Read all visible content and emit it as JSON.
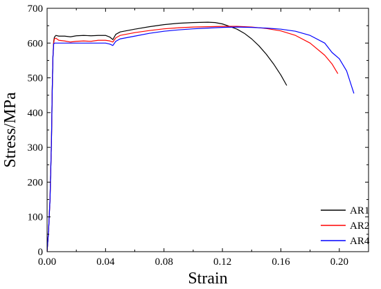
{
  "chart_data": {
    "type": "line",
    "xlabel": "Strain",
    "ylabel": "Stress/MPa",
    "xlim": [
      0.0,
      0.22
    ],
    "ylim": [
      0,
      700
    ],
    "x_ticks": [
      0.0,
      0.04,
      0.08,
      0.12,
      0.16,
      0.2
    ],
    "x_tick_labels": [
      "0.00",
      "0.04",
      "0.08",
      "0.12",
      "0.16",
      "0.20"
    ],
    "y_ticks": [
      0,
      100,
      200,
      300,
      400,
      500,
      600,
      700
    ],
    "y_tick_labels": [
      "0",
      "100",
      "200",
      "300",
      "400",
      "500",
      "600",
      "700"
    ],
    "grid": false,
    "legend_position": "bottom-right",
    "series": [
      {
        "name": "AR1",
        "color": "#000000",
        "points": [
          [
            0.0,
            0
          ],
          [
            0.001,
            60
          ],
          [
            0.002,
            150
          ],
          [
            0.003,
            320
          ],
          [
            0.0035,
            460
          ],
          [
            0.004,
            560
          ],
          [
            0.0045,
            605
          ],
          [
            0.005,
            617
          ],
          [
            0.006,
            622
          ],
          [
            0.008,
            620
          ],
          [
            0.012,
            620
          ],
          [
            0.016,
            618
          ],
          [
            0.02,
            621
          ],
          [
            0.025,
            622
          ],
          [
            0.03,
            621
          ],
          [
            0.035,
            622
          ],
          [
            0.04,
            622
          ],
          [
            0.043,
            617
          ],
          [
            0.045,
            610
          ],
          [
            0.047,
            625
          ],
          [
            0.05,
            632
          ],
          [
            0.06,
            640
          ],
          [
            0.07,
            647
          ],
          [
            0.08,
            653
          ],
          [
            0.09,
            657
          ],
          [
            0.1,
            659
          ],
          [
            0.11,
            660
          ],
          [
            0.115,
            659
          ],
          [
            0.12,
            655
          ],
          [
            0.125,
            648
          ],
          [
            0.13,
            640
          ],
          [
            0.135,
            628
          ],
          [
            0.14,
            612
          ],
          [
            0.145,
            592
          ],
          [
            0.15,
            568
          ],
          [
            0.155,
            540
          ],
          [
            0.16,
            508
          ],
          [
            0.164,
            478
          ]
        ]
      },
      {
        "name": "AR2",
        "color": "#ff0000",
        "points": [
          [
            0.0,
            0
          ],
          [
            0.001,
            60
          ],
          [
            0.002,
            150
          ],
          [
            0.003,
            320
          ],
          [
            0.0035,
            460
          ],
          [
            0.004,
            560
          ],
          [
            0.0045,
            600
          ],
          [
            0.005,
            612
          ],
          [
            0.006,
            614
          ],
          [
            0.008,
            608
          ],
          [
            0.012,
            606
          ],
          [
            0.016,
            603
          ],
          [
            0.02,
            605
          ],
          [
            0.025,
            606
          ],
          [
            0.03,
            605
          ],
          [
            0.035,
            608
          ],
          [
            0.04,
            608
          ],
          [
            0.043,
            606
          ],
          [
            0.045,
            603
          ],
          [
            0.047,
            615
          ],
          [
            0.05,
            622
          ],
          [
            0.06,
            630
          ],
          [
            0.07,
            636
          ],
          [
            0.08,
            641
          ],
          [
            0.09,
            644
          ],
          [
            0.1,
            646
          ],
          [
            0.11,
            647
          ],
          [
            0.12,
            648
          ],
          [
            0.13,
            648
          ],
          [
            0.14,
            646
          ],
          [
            0.15,
            642
          ],
          [
            0.16,
            635
          ],
          [
            0.17,
            622
          ],
          [
            0.18,
            600
          ],
          [
            0.19,
            565
          ],
          [
            0.195,
            540
          ],
          [
            0.199,
            512
          ]
        ]
      },
      {
        "name": "AR4",
        "color": "#0000ff",
        "points": [
          [
            0.0,
            0
          ],
          [
            0.001,
            60
          ],
          [
            0.002,
            150
          ],
          [
            0.003,
            320
          ],
          [
            0.0035,
            460
          ],
          [
            0.004,
            560
          ],
          [
            0.0045,
            597
          ],
          [
            0.005,
            600
          ],
          [
            0.008,
            600
          ],
          [
            0.012,
            600
          ],
          [
            0.016,
            600
          ],
          [
            0.02,
            600
          ],
          [
            0.025,
            600
          ],
          [
            0.03,
            600
          ],
          [
            0.035,
            600
          ],
          [
            0.04,
            600
          ],
          [
            0.043,
            597
          ],
          [
            0.045,
            593
          ],
          [
            0.047,
            605
          ],
          [
            0.05,
            612
          ],
          [
            0.06,
            620
          ],
          [
            0.07,
            628
          ],
          [
            0.08,
            634
          ],
          [
            0.09,
            638
          ],
          [
            0.1,
            641
          ],
          [
            0.11,
            643
          ],
          [
            0.12,
            645
          ],
          [
            0.13,
            646
          ],
          [
            0.14,
            645
          ],
          [
            0.15,
            643
          ],
          [
            0.16,
            640
          ],
          [
            0.17,
            634
          ],
          [
            0.18,
            622
          ],
          [
            0.19,
            600
          ],
          [
            0.195,
            573
          ],
          [
            0.2,
            555
          ],
          [
            0.205,
            520
          ],
          [
            0.21,
            455
          ]
        ]
      }
    ]
  }
}
